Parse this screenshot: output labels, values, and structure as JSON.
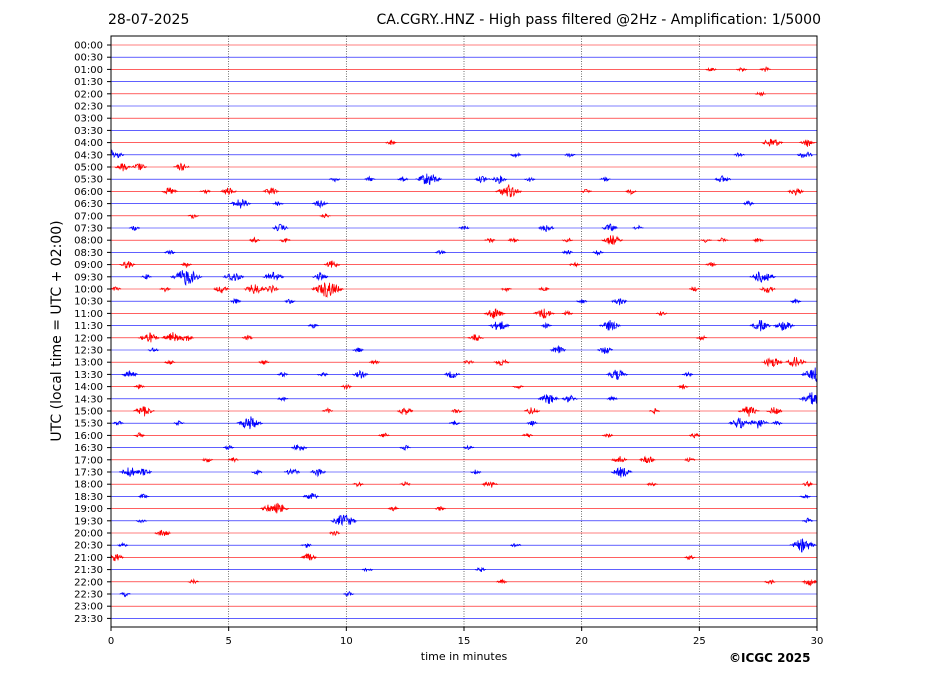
{
  "header": {
    "date": "28-07-2025",
    "title": "CA.CGRY..HNZ - High pass filtered @2Hz - Amplification: 1/5000"
  },
  "footer": {
    "copyright": "©ICGC 2025"
  },
  "chart_data": {
    "type": "line",
    "title": "CA.CGRY..HNZ - High pass filtered @2Hz - Amplification: 1/5000",
    "xlabel": "time in minutes",
    "ylabel": "UTC (local time = UTC + 02:00)",
    "xlim": [
      0,
      30
    ],
    "x_ticks": [
      0,
      5,
      10,
      15,
      20,
      25,
      30
    ],
    "x_tick_labels": [
      "0",
      "5",
      "10",
      "15",
      "20",
      "25",
      "30"
    ],
    "vertical_grid": true,
    "row_labels": [
      "00:00",
      "00:30",
      "01:00",
      "01:30",
      "02:00",
      "02:30",
      "03:00",
      "03:30",
      "04:00",
      "04:30",
      "05:00",
      "05:30",
      "06:00",
      "06:30",
      "07:00",
      "07:30",
      "08:00",
      "08:30",
      "09:00",
      "09:30",
      "10:00",
      "10:30",
      "11:00",
      "11:30",
      "12:00",
      "12:30",
      "13:00",
      "13:30",
      "14:00",
      "14:30",
      "15:00",
      "15:30",
      "16:00",
      "16:30",
      "17:00",
      "17:30",
      "18:00",
      "18:30",
      "19:00",
      "19:30",
      "20:00",
      "20:30",
      "21:00",
      "21:30",
      "22:00",
      "22:30",
      "23:00",
      "23:30"
    ],
    "colors": [
      "#ff0000",
      "#0000ff"
    ],
    "events": [
      {
        "row": "01:00",
        "t": [
          [
            25.5,
            1
          ],
          [
            26.8,
            1
          ],
          [
            27.8,
            1
          ]
        ]
      },
      {
        "row": "02:00",
        "t": [
          [
            27.6,
            1
          ]
        ]
      },
      {
        "row": "04:00",
        "t": [
          [
            11.9,
            1
          ],
          [
            28.1,
            3
          ],
          [
            29.6,
            2
          ]
        ]
      },
      {
        "row": "04:30",
        "t": [
          [
            0.1,
            3
          ],
          [
            17.2,
            1
          ],
          [
            19.5,
            1
          ],
          [
            26.7,
            1
          ],
          [
            29.5,
            2
          ]
        ]
      },
      {
        "row": "05:00",
        "t": [
          [
            0.5,
            2
          ],
          [
            1.2,
            2
          ],
          [
            3.0,
            2
          ]
        ]
      },
      {
        "row": "05:30",
        "t": [
          [
            9.5,
            1
          ],
          [
            11.0,
            1
          ],
          [
            12.4,
            1
          ],
          [
            13.5,
            4
          ],
          [
            15.8,
            2
          ],
          [
            16.5,
            2
          ],
          [
            17.8,
            1
          ],
          [
            21.0,
            1
          ],
          [
            26.0,
            2
          ]
        ]
      },
      {
        "row": "06:00",
        "t": [
          [
            2.5,
            2
          ],
          [
            4.0,
            1
          ],
          [
            5.0,
            2
          ],
          [
            6.8,
            2
          ],
          [
            16.9,
            4
          ],
          [
            20.2,
            1
          ],
          [
            22.1,
            1
          ],
          [
            29.1,
            2
          ]
        ]
      },
      {
        "row": "06:30",
        "t": [
          [
            5.5,
            3
          ],
          [
            7.1,
            1
          ],
          [
            8.9,
            2
          ],
          [
            27.1,
            1
          ]
        ]
      },
      {
        "row": "07:00",
        "t": [
          [
            3.5,
            1
          ],
          [
            9.1,
            1
          ]
        ]
      },
      {
        "row": "07:30",
        "t": [
          [
            1.0,
            1
          ],
          [
            7.2,
            2
          ],
          [
            15.0,
            1
          ],
          [
            18.5,
            2
          ],
          [
            21.2,
            2
          ],
          [
            22.4,
            1
          ]
        ]
      },
      {
        "row": "08:00",
        "t": [
          [
            6.1,
            1
          ],
          [
            7.4,
            1
          ],
          [
            16.1,
            1
          ],
          [
            17.1,
            1
          ],
          [
            19.4,
            1
          ],
          [
            21.3,
            3
          ],
          [
            25.3,
            1
          ],
          [
            26.0,
            1
          ],
          [
            27.5,
            1
          ]
        ]
      },
      {
        "row": "08:30",
        "t": [
          [
            2.5,
            1
          ],
          [
            14.0,
            1
          ],
          [
            19.4,
            1
          ],
          [
            20.7,
            1
          ]
        ]
      },
      {
        "row": "09:00",
        "t": [
          [
            0.7,
            2
          ],
          [
            3.2,
            1
          ],
          [
            9.4,
            2
          ],
          [
            19.7,
            1
          ],
          [
            25.5,
            1
          ]
        ]
      },
      {
        "row": "09:30",
        "t": [
          [
            1.5,
            1
          ],
          [
            3.2,
            5
          ],
          [
            5.2,
            3
          ],
          [
            6.9,
            3
          ],
          [
            8.9,
            2
          ],
          [
            27.7,
            4
          ]
        ]
      },
      {
        "row": "10:00",
        "t": [
          [
            0.2,
            1
          ],
          [
            2.3,
            1
          ],
          [
            4.7,
            2
          ],
          [
            6.1,
            3
          ],
          [
            6.8,
            2
          ],
          [
            9.2,
            5
          ],
          [
            16.8,
            1
          ],
          [
            18.4,
            1
          ],
          [
            24.8,
            1
          ],
          [
            27.9,
            2
          ]
        ]
      },
      {
        "row": "10:30",
        "t": [
          [
            5.3,
            1
          ],
          [
            7.6,
            1
          ],
          [
            20.0,
            1
          ],
          [
            21.6,
            2
          ],
          [
            29.1,
            1
          ]
        ]
      },
      {
        "row": "11:00",
        "t": [
          [
            16.3,
            3
          ],
          [
            18.4,
            3
          ],
          [
            19.4,
            1
          ],
          [
            23.4,
            1
          ]
        ]
      },
      {
        "row": "11:30",
        "t": [
          [
            8.6,
            1
          ],
          [
            16.5,
            3
          ],
          [
            18.5,
            1
          ],
          [
            21.2,
            3
          ],
          [
            27.6,
            3
          ],
          [
            28.6,
            3
          ]
        ]
      },
      {
        "row": "12:00",
        "t": [
          [
            1.6,
            3
          ],
          [
            2.6,
            3
          ],
          [
            3.2,
            2
          ],
          [
            5.8,
            1
          ],
          [
            15.5,
            2
          ],
          [
            25.1,
            1
          ]
        ]
      },
      {
        "row": "12:30",
        "t": [
          [
            1.8,
            1
          ],
          [
            10.5,
            1
          ],
          [
            19.0,
            2
          ],
          [
            21.0,
            2
          ]
        ]
      },
      {
        "row": "13:00",
        "t": [
          [
            2.5,
            1
          ],
          [
            6.5,
            1
          ],
          [
            11.2,
            1
          ],
          [
            15.2,
            1
          ],
          [
            16.6,
            2
          ],
          [
            28.1,
            3
          ],
          [
            29.1,
            3
          ]
        ]
      },
      {
        "row": "13:30",
        "t": [
          [
            0.8,
            2
          ],
          [
            7.3,
            1
          ],
          [
            9.0,
            1
          ],
          [
            10.6,
            2
          ],
          [
            14.5,
            2
          ],
          [
            21.5,
            3
          ],
          [
            24.5,
            1
          ],
          [
            29.9,
            4
          ]
        ]
      },
      {
        "row": "14:00",
        "t": [
          [
            1.2,
            1
          ],
          [
            10.0,
            1
          ],
          [
            17.3,
            1
          ],
          [
            24.3,
            1
          ]
        ]
      },
      {
        "row": "14:30",
        "t": [
          [
            7.3,
            1
          ],
          [
            18.6,
            3
          ],
          [
            19.5,
            2
          ],
          [
            21.3,
            1
          ],
          [
            29.8,
            4
          ]
        ]
      },
      {
        "row": "15:00",
        "t": [
          [
            1.4,
            3
          ],
          [
            9.2,
            1
          ],
          [
            12.5,
            2
          ],
          [
            14.7,
            1
          ],
          [
            17.9,
            2
          ],
          [
            23.1,
            1
          ],
          [
            27.1,
            3
          ],
          [
            28.2,
            2
          ]
        ]
      },
      {
        "row": "15:30",
        "t": [
          [
            0.3,
            1
          ],
          [
            2.9,
            1
          ],
          [
            5.9,
            4
          ],
          [
            14.6,
            1
          ],
          [
            17.9,
            1
          ],
          [
            26.7,
            3
          ],
          [
            27.5,
            3
          ],
          [
            28.3,
            1
          ]
        ]
      },
      {
        "row": "16:00",
        "t": [
          [
            1.2,
            1
          ],
          [
            11.6,
            1
          ],
          [
            17.7,
            1
          ],
          [
            21.1,
            1
          ],
          [
            24.8,
            1
          ]
        ]
      },
      {
        "row": "16:30",
        "t": [
          [
            5.0,
            1
          ],
          [
            8.0,
            2
          ],
          [
            12.5,
            1
          ],
          [
            15.2,
            1
          ]
        ]
      },
      {
        "row": "17:00",
        "t": [
          [
            4.1,
            1
          ],
          [
            5.2,
            1
          ],
          [
            21.6,
            2
          ],
          [
            22.8,
            2
          ],
          [
            24.6,
            1
          ]
        ]
      },
      {
        "row": "17:30",
        "t": [
          [
            0.8,
            3
          ],
          [
            1.4,
            2
          ],
          [
            6.2,
            1
          ],
          [
            7.7,
            2
          ],
          [
            8.8,
            2
          ],
          [
            15.5,
            1
          ],
          [
            21.7,
            3
          ]
        ]
      },
      {
        "row": "18:00",
        "t": [
          [
            10.5,
            1
          ],
          [
            12.5,
            1
          ],
          [
            16.1,
            2
          ],
          [
            23.0,
            1
          ],
          [
            29.6,
            1
          ]
        ]
      },
      {
        "row": "18:30",
        "t": [
          [
            1.4,
            1
          ],
          [
            8.5,
            2
          ],
          [
            29.5,
            1
          ]
        ]
      },
      {
        "row": "19:00",
        "t": [
          [
            6.7,
            2
          ],
          [
            7.1,
            3
          ],
          [
            12.0,
            1
          ],
          [
            14.0,
            1
          ]
        ]
      },
      {
        "row": "19:30",
        "t": [
          [
            1.3,
            1
          ],
          [
            9.9,
            4
          ],
          [
            29.6,
            1
          ]
        ]
      },
      {
        "row": "20:00",
        "t": [
          [
            2.2,
            2
          ],
          [
            9.5,
            1
          ]
        ]
      },
      {
        "row": "20:30",
        "t": [
          [
            0.5,
            1
          ],
          [
            8.3,
            1
          ],
          [
            17.2,
            1
          ],
          [
            29.4,
            4
          ]
        ]
      },
      {
        "row": "21:00",
        "t": [
          [
            0.2,
            2
          ],
          [
            8.4,
            2
          ],
          [
            24.6,
            1
          ]
        ]
      },
      {
        "row": "21:30",
        "t": [
          [
            10.9,
            1
          ],
          [
            15.7,
            1
          ]
        ]
      },
      {
        "row": "22:00",
        "t": [
          [
            3.5,
            1
          ],
          [
            16.6,
            1
          ],
          [
            28.0,
            1
          ],
          [
            29.7,
            2
          ]
        ]
      },
      {
        "row": "22:30",
        "t": [
          [
            0.6,
            1
          ],
          [
            10.1,
            1
          ]
        ]
      }
    ]
  }
}
